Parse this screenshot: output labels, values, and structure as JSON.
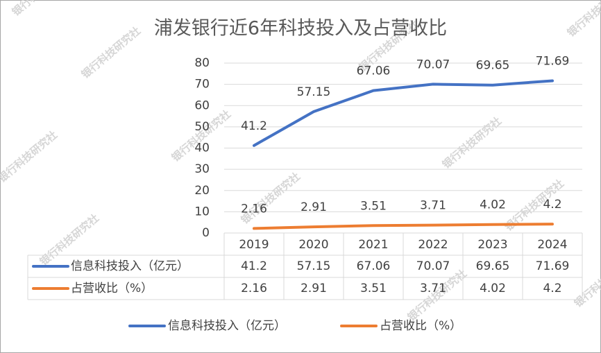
{
  "chart_data": {
    "type": "line",
    "title": "浦发银行近6年科技投入及占营收比",
    "watermark": "银行科技研究社",
    "categories": [
      "2019",
      "2020",
      "2021",
      "2022",
      "2023",
      "2024"
    ],
    "series": [
      {
        "name": "信息科技投入（亿元）",
        "color": "#4472c4",
        "values": [
          41.2,
          57.15,
          67.06,
          70.07,
          69.65,
          71.69
        ]
      },
      {
        "name": "占营收比（%）",
        "color": "#ed7d31",
        "values": [
          2.16,
          2.91,
          3.51,
          3.71,
          4.02,
          4.2
        ]
      }
    ],
    "ylim": [
      0,
      80
    ],
    "yticks": [
      0,
      10,
      20,
      30,
      40,
      50,
      60,
      70,
      80
    ],
    "grid": true,
    "data_labels": true,
    "data_table": true,
    "legend": "bottom"
  }
}
